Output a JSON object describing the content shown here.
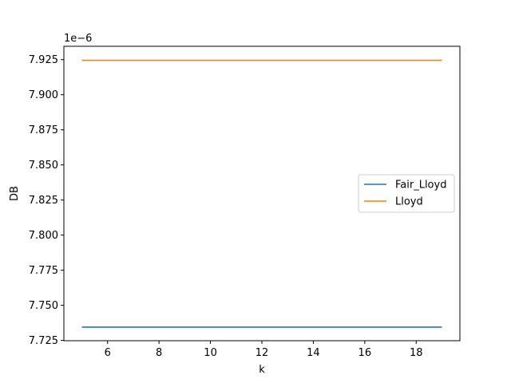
{
  "chart_data": {
    "type": "line",
    "xlabel": "k",
    "ylabel": "DB",
    "y_offset_text": "1e−6",
    "xlim": [
      4.3,
      19.7
    ],
    "ylim": [
      7.7248,
      7.9345
    ],
    "x_ticks": [
      6,
      8,
      10,
      12,
      14,
      16,
      18
    ],
    "x_tick_labels": [
      "6",
      "8",
      "10",
      "12",
      "14",
      "16",
      "18"
    ],
    "y_ticks": [
      7.725,
      7.75,
      7.775,
      7.8,
      7.825,
      7.85,
      7.875,
      7.9,
      7.925
    ],
    "y_tick_labels": [
      "7.725",
      "7.750",
      "7.775",
      "7.800",
      "7.825",
      "7.850",
      "7.875",
      "7.900",
      "7.925"
    ],
    "grid": false,
    "legend_position": "right",
    "series": [
      {
        "name": "Fair_Lloyd",
        "color": "#1f77b4",
        "x": [
          5,
          6,
          7,
          8,
          9,
          10,
          11,
          12,
          13,
          14,
          15,
          16,
          17,
          18,
          19
        ],
        "values": [
          7.7345,
          7.7345,
          7.7345,
          7.7345,
          7.7345,
          7.7345,
          7.7345,
          7.7345,
          7.7345,
          7.7345,
          7.7345,
          7.7345,
          7.7345,
          7.7345,
          7.7345
        ]
      },
      {
        "name": "Lloyd",
        "color": "#ff7f0e",
        "x": [
          5,
          6,
          7,
          8,
          9,
          10,
          11,
          12,
          13,
          14,
          15,
          16,
          17,
          18,
          19
        ],
        "values": [
          7.9245,
          7.9245,
          7.9245,
          7.9245,
          7.9245,
          7.9245,
          7.9245,
          7.9245,
          7.9245,
          7.9245,
          7.9245,
          7.9245,
          7.9245,
          7.9245,
          7.9245
        ]
      }
    ]
  }
}
